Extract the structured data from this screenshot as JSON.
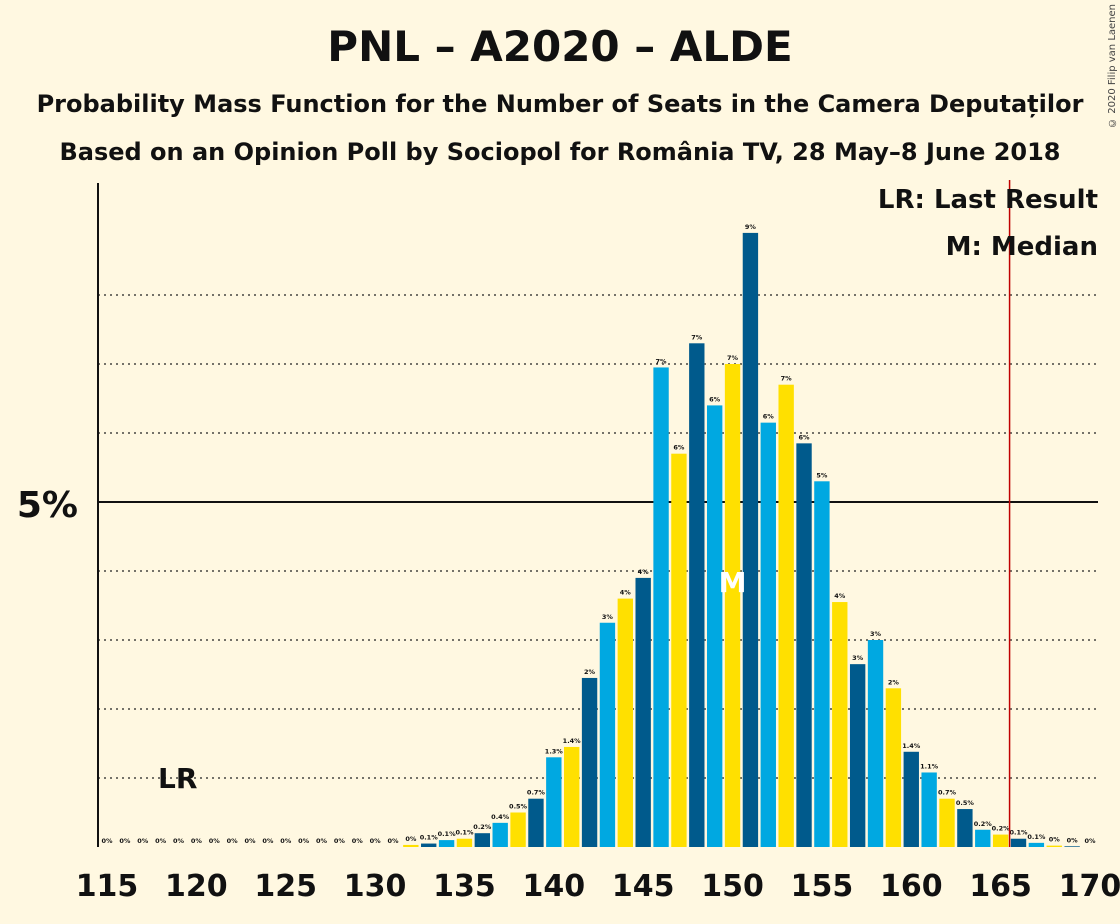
{
  "title": "PNL – A2020 – ALDE",
  "subtitle1": "Probability Mass Function for the Number of Seats in the Camera Deputaților",
  "subtitle2": "Based on an Opinion Poll by Sociopol for România TV, 28 May–8 June 2018",
  "copyright": "© 2020 Filip van Laenen",
  "legend": {
    "last_result": "LR: Last Result",
    "median": "M: Median"
  },
  "colors": {
    "background": "#fff8e1",
    "dark_blue": "#005a8c",
    "light_blue": "#00a8e1",
    "yellow": "#ffe000",
    "last_result_line": "#c00000"
  },
  "chart_data": {
    "type": "bar",
    "x": [
      115,
      116,
      117,
      118,
      119,
      120,
      121,
      122,
      123,
      124,
      125,
      126,
      127,
      128,
      129,
      130,
      131,
      132,
      133,
      134,
      135,
      136,
      137,
      138,
      139,
      140,
      141,
      142,
      143,
      144,
      145,
      146,
      147,
      148,
      149,
      150,
      151,
      152,
      153,
      154,
      155,
      156,
      157,
      158,
      159,
      160,
      161,
      162,
      163,
      164,
      165,
      166,
      167,
      168,
      169,
      170
    ],
    "values": [
      0,
      0,
      0,
      0,
      0,
      0,
      0,
      0,
      0,
      0,
      0,
      0,
      0,
      0,
      0,
      0,
      0,
      0.03,
      0.05,
      0.1,
      0.12,
      0.2,
      0.35,
      0.5,
      0.7,
      1.3,
      1.45,
      2.45,
      3.25,
      3.6,
      3.9,
      6.95,
      5.7,
      7.3,
      6.4,
      7.0,
      8.9,
      6.15,
      6.7,
      5.85,
      5.3,
      3.55,
      2.65,
      3.0,
      2.3,
      1.38,
      1.08,
      0.7,
      0.55,
      0.25,
      0.18,
      0.12,
      0.06,
      0.02,
      0.01,
      0
    ],
    "labels": [
      "0%",
      "0%",
      "0%",
      "0%",
      "0%",
      "0%",
      "0%",
      "0%",
      "0%",
      "0%",
      "0%",
      "0%",
      "0%",
      "0%",
      "0%",
      "0%",
      "0%",
      "0%",
      "0.1%",
      "0.1%",
      "0.1%",
      "0.2%",
      "0.4%",
      "0.5%",
      "0.7%",
      "1.3%",
      "1.4%",
      "2%",
      "3%",
      "4%",
      "4%",
      "7%",
      "6%",
      "7%",
      "6%",
      "7%",
      "9%",
      "6%",
      "7%",
      "6%",
      "5%",
      "4%",
      "3%",
      "3%",
      "2%",
      "1.4%",
      "1.1%",
      "0.7%",
      "0.5%",
      "0.2%",
      "0.2%",
      "0.1%",
      "0.1%",
      "0%",
      "0%",
      "0%"
    ],
    "x_ticks": [
      "115",
      "120",
      "125",
      "130",
      "135",
      "140",
      "145",
      "150",
      "155",
      "160",
      "165",
      "170"
    ],
    "y_tick_label": "5%",
    "ylim": [
      0,
      9.25
    ],
    "last_result_seat": 166,
    "last_result_marker": "LR",
    "median_seat": 150,
    "median_marker": "M",
    "grid": true
  }
}
